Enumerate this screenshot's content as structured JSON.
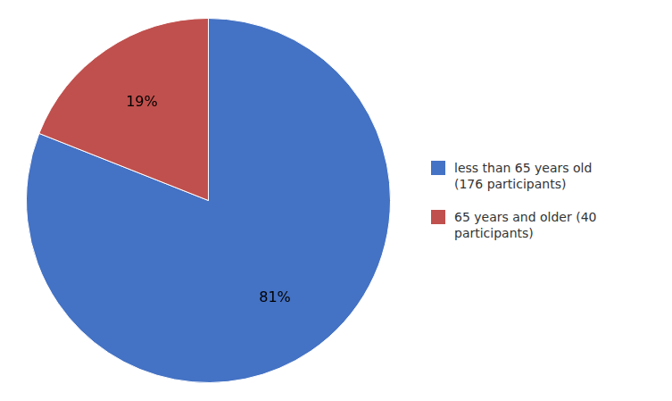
{
  "chart_data": {
    "type": "pie",
    "categories": [
      "less than 65 years old\n(176 participants)",
      "65 years and older (40\nparticipants)"
    ],
    "values": [
      81,
      19
    ],
    "value_labels": [
      "81%",
      "19%"
    ],
    "colors": [
      "#4472C4",
      "#C0504D"
    ],
    "data_labels": true,
    "legend": "right"
  }
}
